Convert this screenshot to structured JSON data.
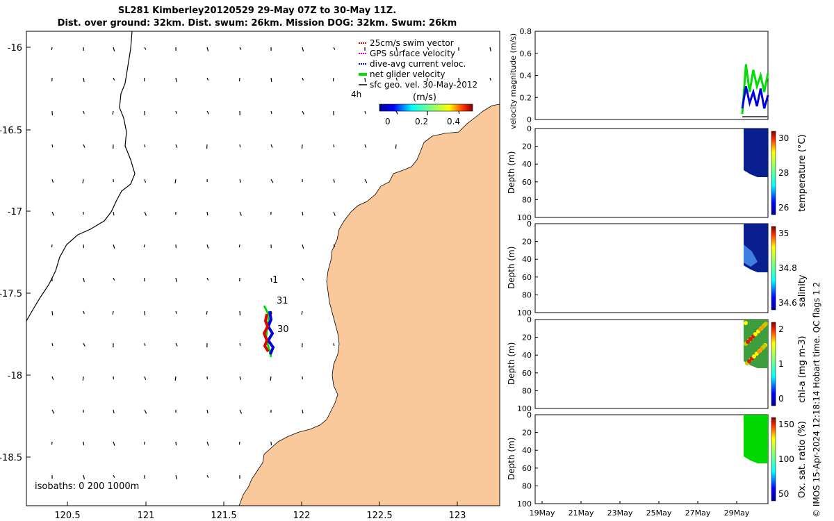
{
  "title_line1": "SL281 Kimberley20120529 29-May 07Z to 30-May 11Z.",
  "title_line2": "Dist. over ground: 32km. Dist. swum: 26km. Mission DOG: 32km. Swum: 26km",
  "side_text": "© IMOS 15-Apr-2024 12:18:14 Hobart time. QC flags 1  2",
  "colors": {
    "land": "#F9C99C",
    "glider_net": "#00DD00",
    "swim": "#E00000",
    "current": "#0000DD"
  },
  "map": {
    "x_ticks": [
      "120.5",
      "121",
      "121.5",
      "122",
      "122.5",
      "123"
    ],
    "y_ticks": [
      "-16",
      "-16.5",
      "-17",
      "-17.5",
      "-18",
      "-18.5"
    ],
    "isobaths_label": "isobaths: 0   200  1000m",
    "day_labels": [
      "1",
      "31",
      "30"
    ],
    "legend": [
      {
        "label": "25cm/s swim vector",
        "color": "#E00000"
      },
      {
        "label": "GPS surface velocity",
        "color": "#CC00CC"
      },
      {
        "label": "dive-avg current veloc.",
        "color": "#0000DD"
      },
      {
        "label": "net glider velocity",
        "color": "#00DD00"
      },
      {
        "label": "sfc geo. vel. 30-May-2012",
        "color": "#000000"
      }
    ],
    "hours_label": "4h",
    "colorbar_title": "(m/s)",
    "colorbar_ticks": [
      "0",
      "0.2",
      "0.4"
    ]
  },
  "velocity_panel": {
    "ylabel": "velocity magnitude (m/s)",
    "y_ticks": [
      "0",
      "0.2",
      "0.4",
      "0.6",
      "0.8"
    ]
  },
  "depth_panels": [
    {
      "ylabel": "Depth (m)",
      "clabel": "temperature (°C)",
      "cticks": [
        "30",
        "28",
        "26"
      ],
      "fill": "#0A1F8F"
    },
    {
      "ylabel": "Depth (m)",
      "clabel": "salinity",
      "cticks": [
        "35",
        "34.8",
        "34.6"
      ],
      "fill": "#0A1F8F"
    },
    {
      "ylabel": "Depth (m)",
      "clabel": "chl-a (mg m-3)",
      "cticks": [
        "2",
        "1",
        "0"
      ],
      "fill": "#3C9E3C"
    },
    {
      "ylabel": "Depth (m)",
      "clabel": "Ox. sat. ratio (%)",
      "cticks": [
        "150",
        "100",
        "50"
      ],
      "fill": "#00D900"
    }
  ],
  "depth_ticks": [
    "0",
    "20",
    "40",
    "60",
    "80",
    "100"
  ],
  "time_ticks": [
    "19May",
    "21May",
    "23May",
    "25May",
    "27May",
    "29May"
  ],
  "chart_data": {
    "type": "line",
    "title": "SL281 Kimberley20120529 29-May 07Z to 30-May 11Z.",
    "series": [
      {
        "name": "net glider velocity",
        "values": [
          0.05,
          0.5,
          0.25,
          0.45,
          0.3,
          0.4,
          0.25,
          0.42
        ]
      },
      {
        "name": "dive-avg current veloc.",
        "values": [
          0.1,
          0.3,
          0.15,
          0.25,
          0.12,
          0.28,
          0.1,
          0.22
        ]
      }
    ],
    "ylabel": "velocity magnitude (m/s)",
    "ylim": [
      0,
      0.8
    ]
  }
}
